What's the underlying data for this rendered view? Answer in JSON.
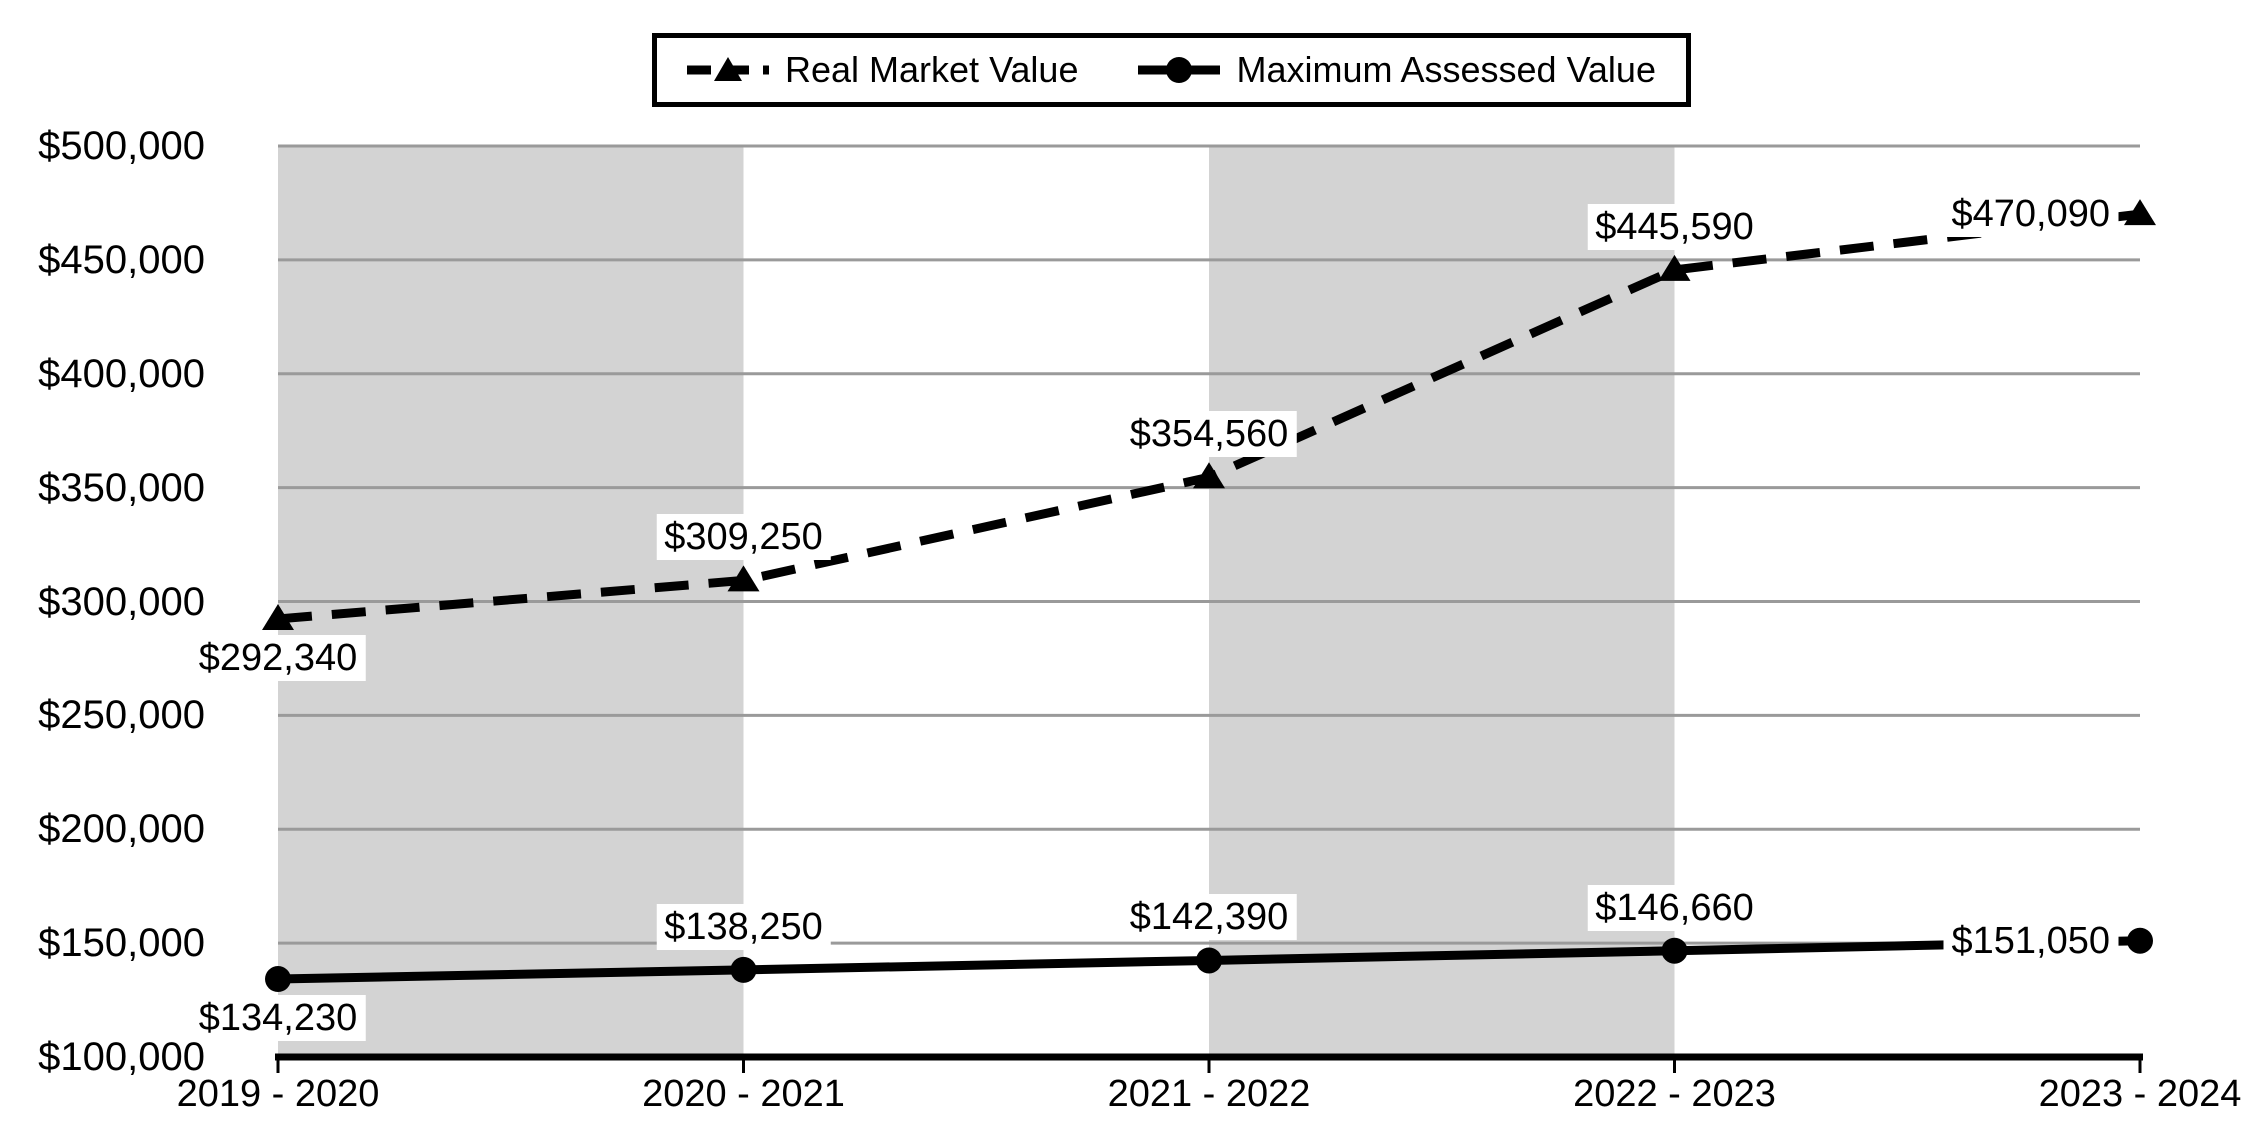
{
  "chart_data": {
    "type": "line",
    "categories": [
      "2019 - 2020",
      "2020 - 2021",
      "2021 - 2022",
      "2022 - 2023",
      "2023 - 2024"
    ],
    "series": [
      {
        "name": "Real Market Value",
        "values": [
          292340,
          309250,
          354560,
          445590,
          470090
        ],
        "labels": [
          "$292,340",
          "$309,250",
          "$354,560",
          "$445,590",
          "$470,090"
        ],
        "line_style": "dashed",
        "marker": "triangle",
        "label_placement": [
          "below",
          "above",
          "above",
          "above",
          "left"
        ]
      },
      {
        "name": "Maximum Assessed Value",
        "values": [
          134230,
          138250,
          142390,
          146660,
          151050
        ],
        "labels": [
          "$134,230",
          "$138,250",
          "$142,390",
          "$146,660",
          "$151,050"
        ],
        "line_style": "solid",
        "marker": "circle",
        "label_placement": [
          "below",
          "above",
          "above",
          "above",
          "left"
        ]
      }
    ],
    "y_axis": {
      "min": 100000,
      "max": 500000,
      "step": 50000,
      "tick_labels": [
        "$100,000",
        "$150,000",
        "$200,000",
        "$250,000",
        "$300,000",
        "$350,000",
        "$400,000",
        "$450,000",
        "$500,000"
      ]
    },
    "legend_position": "top",
    "grid": "horizontal",
    "plot_band_color": "#d3d3d3",
    "gridline_color": "#9a9a9a",
    "series_color": "#000000",
    "background": "#ffffff"
  }
}
